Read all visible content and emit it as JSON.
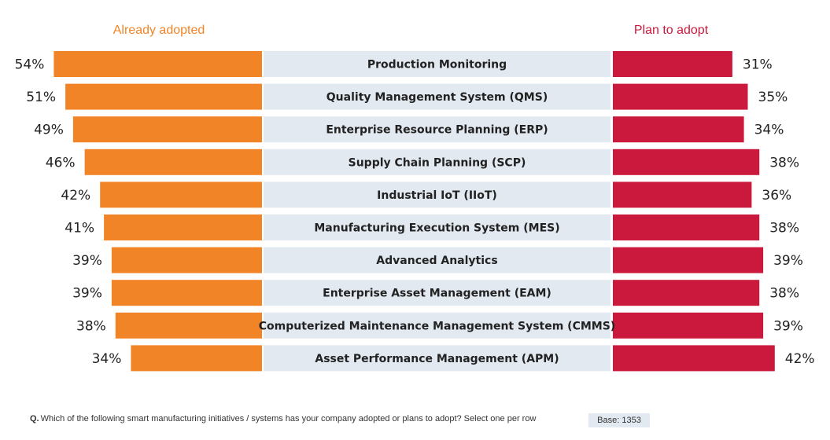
{
  "colors": {
    "adopted": "#f28428",
    "plan": "#cb193d",
    "category_band": "#e2e9f0",
    "adopted_label": "#f28428",
    "plan_label": "#cb193d"
  },
  "footer": {
    "q_marker": "Q.",
    "question": "Which of the following smart manufacturing initiatives / systems has your company adopted or plans to adopt? Select one per row",
    "base": "Base: 1353"
  },
  "chart_data": {
    "type": "bar",
    "orientation": "horizontal-diverging",
    "series": [
      {
        "name": "Already adopted",
        "values": [
          54,
          51,
          49,
          46,
          42,
          41,
          39,
          39,
          38,
          34
        ]
      },
      {
        "name": "Plan to adopt",
        "values": [
          31,
          35,
          34,
          38,
          36,
          38,
          39,
          38,
          39,
          42
        ]
      }
    ],
    "categories": [
      "Production Monitoring",
      "Quality Management System (QMS)",
      "Enterprise Resource Planning  (ERP)",
      "Supply Chain Planning (SCP)",
      "Industrial IoT (IIoT)",
      "Manufacturing Execution System (MES)",
      "Advanced Analytics",
      "Enterprise Asset Management (EAM)",
      "Computerized Maintenance Management System (CMMS)",
      "Asset Performance Management (APM)"
    ],
    "value_labels": {
      "adopted": [
        "54%",
        "51%",
        "49%",
        "46%",
        "42%",
        "41%",
        "39%",
        "39%",
        "38%",
        "34%"
      ],
      "plan": [
        "31%",
        "35%",
        "34%",
        "38%",
        "36%",
        "38%",
        "39%",
        "38%",
        "39%",
        "42%"
      ]
    },
    "legend_position": "top",
    "grid": false
  }
}
